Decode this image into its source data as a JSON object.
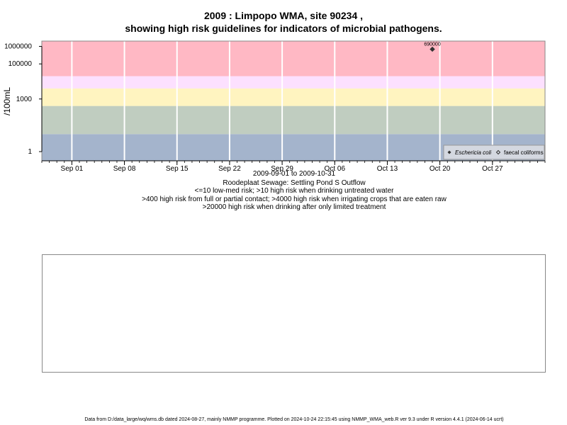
{
  "header": {
    "title_line1": "2009 : Limpopo WMA, site 90234 ,",
    "title_line2": "showing high risk guidelines for indicators of microbial pathogens."
  },
  "subtitle": {
    "date_range": "2009-09-01 to 2009-10-31",
    "site_name": "Roodeplaat Sewage: Settling Pond S Outflow",
    "guideline1": "<=10 low-med risk; >10 high risk when drinking untreated water",
    "guideline2": ">400 high risk from full or partial contact; >4000 high risk when irrigating crops that are eaten raw",
    "guideline3": ">20000 high risk when drinking after only limited treatment"
  },
  "footer": {
    "text": "Data from D:/data_large/wq/wms.db dated 2024-08-27, mainly NMMP programme. Plotted on 2024-10-24 22:15:45 using NMMP_WMA_web.R ver 9.3 under R version 4.4.1 (2024-06-14 ucrt)"
  },
  "colors": {
    "band_low": "#a4b4cc",
    "band_green": "#c0cdc0",
    "band_yellow": "#fff4c0",
    "band_pink_light": "#fce0ff",
    "band_pink": "#ffb8c4",
    "gridline": "#ffffff",
    "point": "#333333"
  },
  "chart_data": {
    "type": "scatter",
    "ylabel": "/100mL",
    "y_scale": "log",
    "x_range": [
      "2009-08-28",
      "2009-11-03"
    ],
    "y_range": [
      0.3,
      2000000
    ],
    "y_ticks": [
      {
        "value": 1,
        "label": "1"
      },
      {
        "value": 1000,
        "label": "1000"
      },
      {
        "value": 100000,
        "label": "100000"
      },
      {
        "value": 1000000,
        "label": "1000000"
      }
    ],
    "x_ticks": [
      {
        "date": "2009-09-01",
        "label": "Sep 01"
      },
      {
        "date": "2009-09-08",
        "label": "Sep 08"
      },
      {
        "date": "2009-09-15",
        "label": "Sep 15"
      },
      {
        "date": "2009-09-22",
        "label": "Sep 22"
      },
      {
        "date": "2009-09-29",
        "label": "Sep 29"
      },
      {
        "date": "2009-10-06",
        "label": "Oct 06"
      },
      {
        "date": "2009-10-13",
        "label": "Oct 13"
      },
      {
        "date": "2009-10-20",
        "label": "Oct 20"
      },
      {
        "date": "2009-10-27",
        "label": "Oct 27"
      }
    ],
    "guideline_bands": [
      {
        "from": 0.3,
        "to": 10,
        "color": "band_low"
      },
      {
        "from": 10,
        "to": 400,
        "color": "band_green"
      },
      {
        "from": 400,
        "to": 4000,
        "color": "band_yellow"
      },
      {
        "from": 4000,
        "to": 20000,
        "color": "band_pink_light"
      },
      {
        "from": 20000,
        "to": 2000000,
        "color": "band_pink"
      }
    ],
    "series": [
      {
        "name": "Eschericia coli",
        "marker": "filled-diamond",
        "points": [
          {
            "date": "2009-10-19",
            "value": 690000,
            "label": "690000"
          }
        ]
      },
      {
        "name": "faecal coliforms",
        "marker": "open-diamond",
        "points": []
      }
    ],
    "legend_position": "bottom-right"
  }
}
